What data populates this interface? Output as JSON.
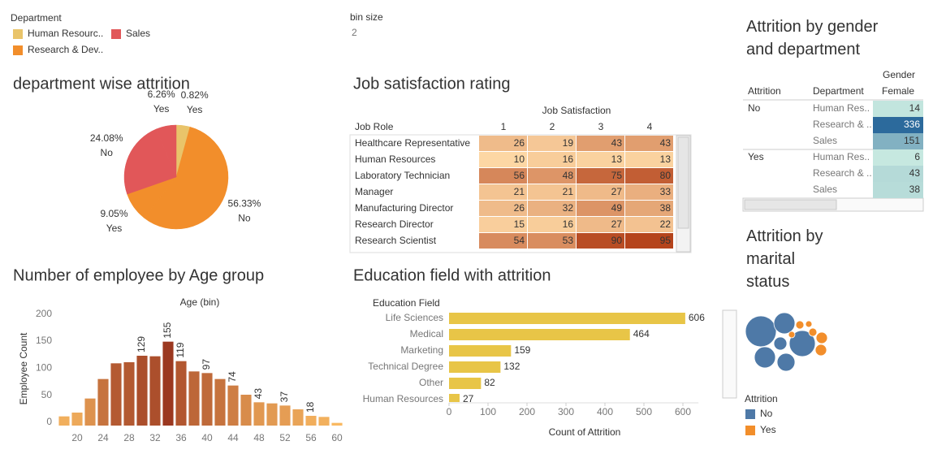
{
  "department_legend": {
    "title": "Department",
    "items": [
      {
        "label": "Human Resourc..",
        "color": "#e9c46a"
      },
      {
        "label": "Sales",
        "color": "#e15759"
      },
      {
        "label": "Research & Dev..",
        "color": "#f28e2b"
      }
    ]
  },
  "bin_size": {
    "label": "bin size",
    "value": 2
  },
  "chart_data": [
    {
      "type": "pie",
      "title": "department wise attrition",
      "categories": [
        null,
        "Yes",
        "No",
        "Yes",
        "No",
        "Yes"
      ],
      "values": [
        3.46,
        0.82,
        56.33,
        9.05,
        24.08,
        6.26
      ],
      "value_labels": [
        null,
        "0.82%",
        "56.33%",
        "9.05%",
        "24.08%",
        "6.26%"
      ],
      "colors": [
        "#e9c46a",
        "#e9c46a",
        "#f28e2b",
        "#f28e2b",
        "#e15759",
        "#e15759"
      ]
    },
    {
      "type": "heatmap",
      "title": "Job satisfaction rating",
      "x_title": "Job Satisfaction",
      "y_title": "Job Role",
      "categories": [
        "Healthcare Representative",
        "Human Resources",
        "Laboratory Technician",
        "Manager",
        "Manufacturing Director",
        "Research Director",
        "Research Scientist"
      ],
      "x": [
        1,
        2,
        3,
        4
      ],
      "values": [
        [
          26,
          19,
          43,
          43
        ],
        [
          10,
          16,
          13,
          13
        ],
        [
          56,
          48,
          75,
          80
        ],
        [
          21,
          21,
          27,
          33
        ],
        [
          26,
          32,
          49,
          38
        ],
        [
          15,
          16,
          27,
          22
        ],
        [
          54,
          53,
          90,
          95
        ]
      ],
      "color_range": [
        "#fdd7a4",
        "#b5441c"
      ]
    },
    {
      "type": "table",
      "title": "Attrition by gender and department",
      "column_header": "Gender",
      "columns": [
        "Female"
      ],
      "row_headers": [
        "Attrition",
        "Department"
      ],
      "groups": [
        {
          "label": "No",
          "rows": [
            "Human Res..",
            "Research & ..",
            "Sales"
          ],
          "values": [
            14,
            336,
            151
          ]
        },
        {
          "label": "Yes",
          "rows": [
            "Human Res..",
            "Research & ..",
            "Sales"
          ],
          "values": [
            6,
            43,
            38
          ]
        }
      ],
      "color_range": [
        "#c6e8e0",
        "#2c6a9c"
      ]
    },
    {
      "type": "bar",
      "title": "Number of employee by Age group",
      "x_title": "Age (bin)",
      "y_title": "Employee Count",
      "x": [
        18,
        20,
        22,
        24,
        26,
        28,
        30,
        32,
        34,
        36,
        38,
        40,
        42,
        44,
        46,
        48,
        50,
        52,
        54,
        56,
        58,
        60
      ],
      "values": [
        17,
        24,
        50,
        86,
        115,
        117,
        129,
        128,
        155,
        119,
        100,
        97,
        86,
        74,
        57,
        43,
        41,
        37,
        30,
        18,
        16,
        5
      ],
      "value_labels": [
        null,
        null,
        null,
        null,
        null,
        null,
        "129",
        null,
        "155",
        "119",
        null,
        "97",
        null,
        "74",
        null,
        "43",
        null,
        "37",
        null,
        "18",
        null,
        null
      ],
      "xlim": [
        17,
        61
      ],
      "xticks": [
        20,
        24,
        28,
        32,
        36,
        40,
        44,
        48,
        52,
        56,
        60
      ],
      "ylim": [
        0,
        210
      ],
      "yticks": [
        0,
        50,
        100,
        150,
        200
      ],
      "color_range": [
        "#f9b962",
        "#9b3820"
      ]
    },
    {
      "type": "hbar",
      "title": "Education field with attrition",
      "y_title": "Education Field",
      "x_title": "Count of Attrition",
      "categories": [
        "Life Sciences",
        "Medical",
        "Marketing",
        "Technical Degree",
        "Other",
        "Human Resources"
      ],
      "values": [
        606,
        464,
        159,
        132,
        82,
        27
      ],
      "color": "#e8c547",
      "xlim": [
        0,
        640
      ],
      "xticks": [
        0,
        100,
        200,
        300,
        400,
        500,
        600
      ]
    },
    {
      "type": "bubble",
      "title": "Attrition by marital status",
      "legend_title": "Attrition",
      "series": [
        {
          "name": "No",
          "color": "#4e79a7",
          "values": [
            361,
            256,
            169,
            169,
            121,
            64
          ]
        },
        {
          "name": "Yes",
          "color": "#f28e2b",
          "values": [
            49,
            49,
            25,
            25,
            16,
            16
          ]
        }
      ]
    }
  ]
}
